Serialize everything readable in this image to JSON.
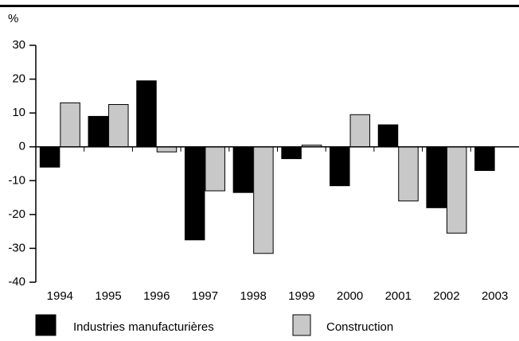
{
  "chart_data": {
    "type": "bar",
    "y_label": "%",
    "categories": [
      "1994",
      "1995",
      "1996",
      "1997",
      "1998",
      "1999",
      "2000",
      "2001",
      "2002",
      "2003"
    ],
    "series": [
      {
        "name": "Industries manufacturières",
        "color": "#000000",
        "values": [
          -6,
          9,
          19.5,
          -27.5,
          -13.5,
          -3.5,
          -11.5,
          6.5,
          -18,
          -7
        ]
      },
      {
        "name": "Construction",
        "color": "#c8c8c8",
        "values": [
          13,
          12.5,
          -1.5,
          -13,
          -31.5,
          0.5,
          9.5,
          -16,
          -25.5,
          null
        ]
      }
    ],
    "ylim": [
      -40,
      30
    ],
    "yticks": [
      -40,
      -30,
      -20,
      -10,
      0,
      10,
      20,
      30
    ],
    "grid": false
  }
}
